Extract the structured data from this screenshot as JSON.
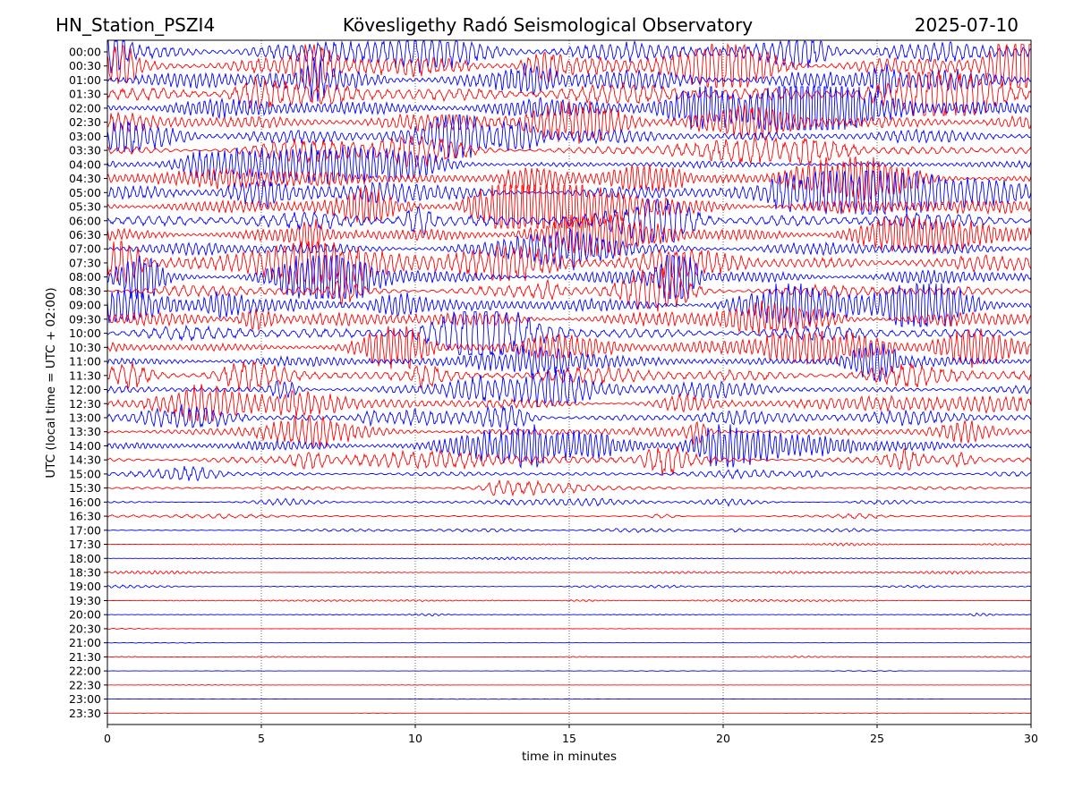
{
  "header": {
    "station": "HN_Station_PSZI4",
    "observatory": "Kövesligethy Radó Seismological Observatory",
    "date": "2025-07-10"
  },
  "chart_data": {
    "type": "line",
    "title": "Kövesligethy Radó Seismological Observatory",
    "xlabel": "time in minutes",
    "ylabel": "UTC (local time = UTC + 02:00)",
    "xlim": [
      0,
      30
    ],
    "x_ticks": [
      "0",
      "5",
      "10",
      "15",
      "20",
      "25",
      "30"
    ],
    "grid": "vertical dotted lines at 5-minute intervals",
    "row_labels": [
      "00:00",
      "00:30",
      "01:00",
      "01:30",
      "02:00",
      "02:30",
      "03:00",
      "03:30",
      "04:00",
      "04:30",
      "05:00",
      "05:30",
      "06:00",
      "06:30",
      "07:00",
      "07:30",
      "08:00",
      "08:30",
      "09:00",
      "09:30",
      "10:00",
      "10:30",
      "11:00",
      "11:30",
      "12:00",
      "12:30",
      "13:00",
      "13:30",
      "14:00",
      "14:30",
      "15:00",
      "15:30",
      "16:00",
      "16:30",
      "17:00",
      "17:30",
      "18:00",
      "18:30",
      "19:00",
      "19:30",
      "20:00",
      "20:30",
      "21:00",
      "21:30",
      "22:00",
      "22:30",
      "23:00",
      "23:30"
    ],
    "trace_colors": [
      "#0000ff",
      "#ff0000"
    ],
    "row_activity": [
      3.6,
      4.0,
      4.0,
      3.8,
      3.6,
      3.2,
      2.4,
      1.6,
      1.3,
      1.9,
      2.6,
      3.0,
      3.0,
      2.8,
      2.4,
      3.0,
      2.6,
      2.2,
      2.4,
      2.8,
      2.6,
      2.0,
      1.8,
      2.0,
      1.4,
      1.8,
      1.6,
      1.6,
      1.8,
      1.2,
      0.8,
      0.55,
      0.4,
      0.22,
      0.2,
      0.16,
      0.2,
      0.16,
      0.14,
      0.14,
      0.16,
      0.06,
      0.04,
      0.06,
      0.05,
      0.03,
      0.02,
      0.02
    ]
  }
}
